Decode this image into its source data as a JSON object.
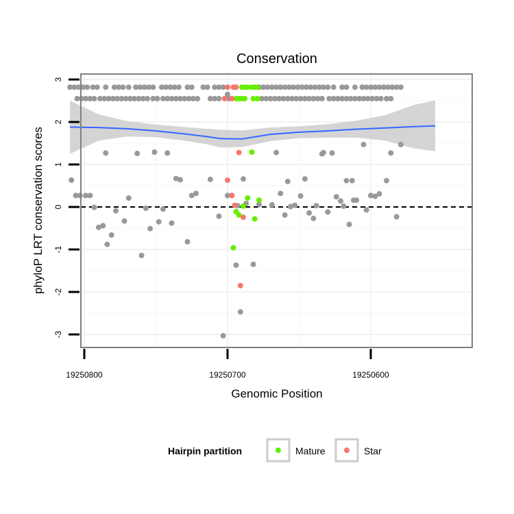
{
  "chart_data": {
    "type": "scatter",
    "title": "Conservation",
    "xlabel": "Genomic Position",
    "ylabel": "phyloP LRT conservation scores",
    "x_reversed": true,
    "xlim": [
      19250813,
      19250540
    ],
    "ylim": [
      -3.3,
      3.1
    ],
    "x_ticks": [
      19250800,
      19250700,
      19250600
    ],
    "x_tick_labels": [
      "19250800",
      "19250700",
      "19250600"
    ],
    "y_ticks": [
      -3,
      -2,
      -1,
      0,
      1,
      2,
      3
    ],
    "y_tick_labels": [
      "-3",
      "-2",
      "-1",
      "0",
      "1",
      "2",
      "3"
    ],
    "grid": true,
    "reference_line": {
      "y": 0,
      "style": "dashed"
    },
    "legend": {
      "title": "Hairpin partition",
      "position": "bottom",
      "entries": [
        {
          "label": "Mature",
          "color": "#66ee00"
        },
        {
          "label": "Star",
          "color": "#f8766d"
        }
      ]
    },
    "colors": {
      "other": "#999999",
      "Mature": "#66ee00",
      "Star": "#f8766d",
      "smooth": "#3366ff",
      "ribbon": "#cccccc"
    },
    "smooth": {
      "x": [
        19250810,
        19250790,
        19250770,
        19250750,
        19250730,
        19250715,
        19250705,
        19250690,
        19250670,
        19250650,
        19250630,
        19250610,
        19250590,
        19250570,
        19250555
      ],
      "y": [
        1.88,
        1.87,
        1.84,
        1.79,
        1.72,
        1.66,
        1.61,
        1.6,
        1.71,
        1.76,
        1.79,
        1.83,
        1.86,
        1.89,
        1.91
      ],
      "lower": [
        1.25,
        1.56,
        1.66,
        1.64,
        1.56,
        1.48,
        1.4,
        1.41,
        1.55,
        1.62,
        1.63,
        1.63,
        1.56,
        1.38,
        1.31
      ],
      "upper": [
        2.5,
        2.18,
        2.02,
        1.94,
        1.88,
        1.84,
        1.82,
        1.8,
        1.87,
        1.9,
        1.95,
        2.03,
        2.16,
        2.4,
        2.51
      ]
    },
    "series": [
      {
        "name": "",
        "group": "other",
        "points": [
          [
            19250809,
            0.63
          ],
          [
            19250806,
            0.27
          ],
          [
            19250803,
            0.27
          ],
          [
            19250799,
            0.27
          ],
          [
            19250796,
            0.27
          ],
          [
            19250793,
            -0.01
          ],
          [
            19250790,
            -0.48
          ],
          [
            19250787,
            -0.44
          ],
          [
            19250785,
            1.27
          ],
          [
            19250784,
            -0.88
          ],
          [
            19250781,
            -0.66
          ],
          [
            19250778,
            -0.09
          ],
          [
            19250772,
            -0.33
          ],
          [
            19250769,
            0.21
          ],
          [
            19250763,
            1.26
          ],
          [
            19250760,
            -1.14
          ],
          [
            19250757,
            -0.03
          ],
          [
            19250754,
            -0.51
          ],
          [
            19250751,
            1.29
          ],
          [
            19250748,
            -0.35
          ],
          [
            19250745,
            -0.05
          ],
          [
            19250742,
            1.27
          ],
          [
            19250739,
            -0.38
          ],
          [
            19250736,
            0.67
          ],
          [
            19250733,
            0.64
          ],
          [
            19250728,
            -0.82
          ],
          [
            19250725,
            0.27
          ],
          [
            19250722,
            0.32
          ],
          [
            19250712,
            0.65
          ],
          [
            19250706,
            -0.22
          ],
          [
            19250700,
            0.27
          ],
          [
            19250697,
            0.27
          ],
          [
            19250694,
            -1.37
          ],
          [
            19250693,
            0.03
          ],
          [
            19250691,
            -2.47
          ],
          [
            19250689,
            0.66
          ],
          [
            19250687,
            0.08
          ],
          [
            19250669,
            0.05
          ],
          [
            19250666,
            1.28
          ],
          [
            19250663,
            0.32
          ],
          [
            19250660,
            -0.19
          ],
          [
            19250658,
            0.6
          ],
          [
            19250656,
            0.01
          ],
          [
            19250653,
            0.04
          ],
          [
            19250649,
            0.26
          ],
          [
            19250646,
            0.66
          ],
          [
            19250643,
            -0.14
          ],
          [
            19250640,
            -0.27
          ],
          [
            19250638,
            0.03
          ],
          [
            19250634,
            1.25
          ],
          [
            19250633,
            1.28
          ],
          [
            19250630,
            -0.12
          ],
          [
            19250627,
            1.27
          ],
          [
            19250624,
            0.24
          ],
          [
            19250621,
            0.14
          ],
          [
            19250619,
            0.02
          ],
          [
            19250617,
            0.62
          ],
          [
            19250615,
            -0.41
          ],
          [
            19250613,
            0.62
          ],
          [
            19250612,
            0.16
          ],
          [
            19250610,
            0.16
          ],
          [
            19250605,
            1.47
          ],
          [
            19250603,
            -0.07
          ],
          [
            19250600,
            0.27
          ],
          [
            19250597,
            0.25
          ],
          [
            19250594,
            0.31
          ],
          [
            19250589,
            0.62
          ],
          [
            19250586,
            1.27
          ],
          [
            19250582,
            -0.23
          ],
          [
            19250579,
            1.47
          ],
          [
            19250703,
            -3.03
          ],
          [
            19250682,
            -1.35
          ],
          [
            19250678,
            0.06
          ],
          [
            19250700,
            2.65
          ],
          [
            19250695,
            2.82
          ]
        ]
      },
      {
        "name": "Mature",
        "group": "Mature",
        "points": [
          [
            19250683,
            1.29
          ],
          [
            19250678,
            0.16
          ],
          [
            19250681,
            -0.28
          ],
          [
            19250686,
            0.21
          ],
          [
            19250689,
            0.02
          ],
          [
            19250692,
            -0.19
          ],
          [
            19250694,
            -0.11
          ],
          [
            19250696,
            -0.96
          ],
          [
            19250690,
            2.82
          ],
          [
            19250688,
            2.82
          ],
          [
            19250686,
            2.82
          ],
          [
            19250683,
            2.82
          ],
          [
            19250681,
            2.82
          ],
          [
            19250679,
            2.82
          ],
          [
            19250694,
            2.55
          ],
          [
            19250692,
            2.55
          ],
          [
            19250690,
            2.55
          ],
          [
            19250688,
            2.55
          ],
          [
            19250682,
            2.55
          ],
          [
            19250679,
            2.55
          ]
        ]
      },
      {
        "name": "Star",
        "group": "Star",
        "points": [
          [
            19250700,
            0.63
          ],
          [
            19250697,
            0.27
          ],
          [
            19250695,
            0.04
          ],
          [
            19250692,
            1.28
          ],
          [
            19250689,
            -0.24
          ],
          [
            19250691,
            -1.85
          ],
          [
            19250700,
            2.82
          ],
          [
            19250696,
            2.82
          ],
          [
            19250694,
            2.82
          ],
          [
            19250702,
            2.55
          ],
          [
            19250697,
            2.55
          ]
        ]
      }
    ],
    "band_top": {
      "y": 2.82,
      "x": [
        19250810,
        19250807,
        19250804,
        19250801,
        19250798,
        19250794,
        19250791,
        19250785,
        19250779,
        19250776,
        19250773,
        19250769,
        19250764,
        19250761,
        19250758,
        19250755,
        19250752,
        19250746,
        19250743,
        19250740,
        19250737,
        19250734,
        19250728,
        19250725,
        19250717,
        19250714,
        19250709,
        19250706,
        19250703,
        19250678,
        19250675,
        19250672,
        19250669,
        19250666,
        19250663,
        19250660,
        19250657,
        19250654,
        19250651,
        19250648,
        19250645,
        19250642,
        19250639,
        19250636,
        19250633,
        19250630,
        19250626,
        19250620,
        19250617,
        19250611,
        19250606,
        19250603,
        19250600,
        19250597,
        19250594,
        19250591,
        19250588,
        19250585,
        19250582,
        19250579
      ],
      "group": "other"
    },
    "band_bottom": {
      "y": 2.55,
      "x": [
        19250805,
        19250802,
        19250799,
        19250796,
        19250793,
        19250789,
        19250786,
        19250783,
        19250780,
        19250777,
        19250774,
        19250771,
        19250768,
        19250765,
        19250762,
        19250759,
        19250756,
        19250752,
        19250749,
        19250745,
        19250742,
        19250739,
        19250736,
        19250733,
        19250730,
        19250727,
        19250724,
        19250721,
        19250712,
        19250709,
        19250706,
        19250699,
        19250676,
        19250673,
        19250670,
        19250667,
        19250664,
        19250661,
        19250658,
        19250655,
        19250652,
        19250649,
        19250646,
        19250643,
        19250640,
        19250637,
        19250634,
        19250629,
        19250626,
        19250623,
        19250620,
        19250617,
        19250614,
        19250611,
        19250608,
        19250605,
        19250602,
        19250599,
        19250596,
        19250593,
        19250589,
        19250586
      ],
      "group": "other"
    }
  }
}
